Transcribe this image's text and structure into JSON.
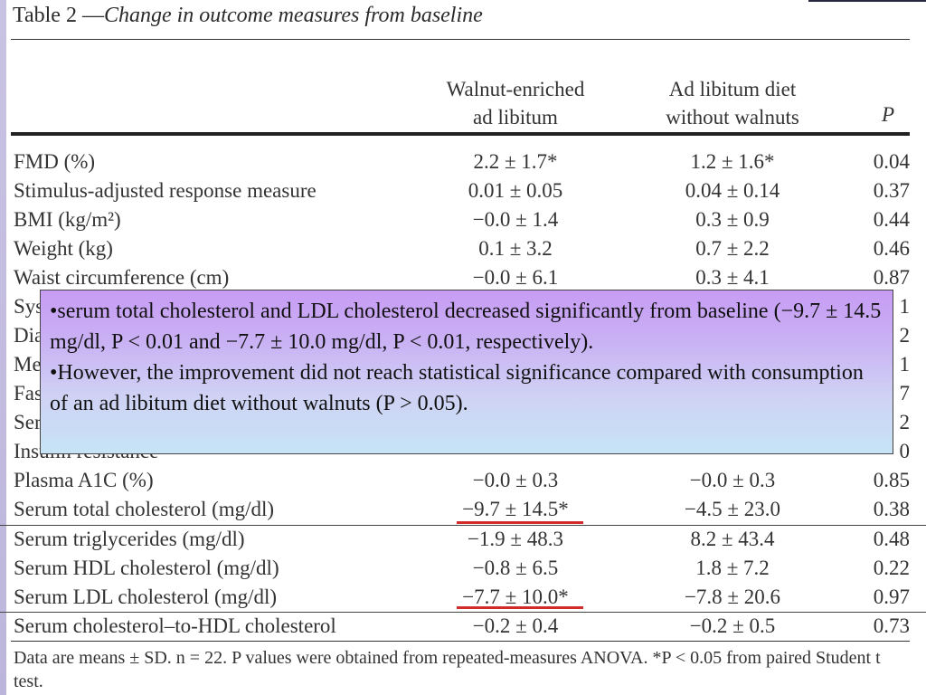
{
  "title": {
    "prefix": "Table 2 —",
    "italic": "Change in outcome measures from baseline"
  },
  "columns": {
    "col1": [
      "Walnut-enriched",
      "ad libitum"
    ],
    "col2": [
      "Ad libitum diet",
      "without walnuts"
    ],
    "col3": "P"
  },
  "rows": [
    {
      "label": "FMD (%)",
      "c1": "2.2 ± 1.7*",
      "c2": "1.2 ± 1.6*",
      "p": "0.04"
    },
    {
      "label": "Stimulus-adjusted response measure",
      "c1": "0.01 ± 0.05",
      "c2": "0.04 ± 0.14",
      "p": "0.37"
    },
    {
      "label": "BMI (kg/m²)",
      "c1": "−0.0 ± 1.4",
      "c2": "0.3 ± 0.9",
      "p": "0.44"
    },
    {
      "label": "Weight (kg)",
      "c1": "0.1 ± 3.2",
      "c2": "0.7 ± 2.2",
      "p": "0.46"
    },
    {
      "label": "Waist circumference (cm)",
      "c1": "−0.0 ± 6.1",
      "c2": "0.3 ± 4.1",
      "p": "0.87"
    },
    {
      "label": "Sys",
      "c1": "",
      "c2": "",
      "p": "1"
    },
    {
      "label": "Dia",
      "c1": "",
      "c2": "",
      "p": "2"
    },
    {
      "label": "Me",
      "c1": "",
      "c2": "",
      "p": "1"
    },
    {
      "label": "Fas",
      "c1": "",
      "c2": "",
      "p": "7"
    },
    {
      "label": "Ser",
      "c1": "",
      "c2": "",
      "p": "2"
    },
    {
      "label": "Insulin resistance",
      "c1": "",
      "c2": "",
      "p": "0"
    },
    {
      "label": "Plasma A1C (%)",
      "c1": "−0.0 ± 0.3",
      "c2": "−0.0 ± 0.3",
      "p": "0.85"
    },
    {
      "label": "Serum total cholesterol (mg/dl)",
      "c1": "−9.7 ± 14.5*",
      "c2": "−4.5 ± 23.0",
      "p": "0.38"
    },
    {
      "label": "Serum triglycerides (mg/dl)",
      "c1": "−1.9 ± 48.3",
      "c2": "8.2 ± 43.4",
      "p": "0.48"
    },
    {
      "label": "Serum HDL cholesterol (mg/dl)",
      "c1": "−0.8 ± 6.5",
      "c2": "1.8 ± 7.2",
      "p": "0.22"
    },
    {
      "label": "Serum LDL cholesterol (mg/dl)",
      "c1": "−7.7 ± 10.0*",
      "c2": "−7.8 ± 20.6",
      "p": "0.97"
    },
    {
      "label": "Serum cholesterol–to-HDL cholesterol",
      "c1": "−0.2 ± 0.4",
      "c2": "−0.2 ± 0.5",
      "p": "0.73"
    }
  ],
  "footnote": "Data are means ± SD. n = 22. P values were obtained from repeated-measures ANOVA. *P < 0.05 from paired Student t test.",
  "overlay": {
    "p1": "•serum total cholesterol and LDL cholesterol decreased significantly from baseline (−9.7 ± 14.5 mg/dl, P < 0.01 and −7.7 ± 10.0 mg/dl, P < 0.01, respectively).",
    "p2": "•However, the improvement did not reach statistical significance compared with consumption of an ad libitum diet without walnuts (P > 0.05)."
  },
  "colors": {
    "highlight_underline": "#d22b2b",
    "overlay_top": "#c79cf4",
    "overlay_bottom": "#c6e4f6"
  }
}
